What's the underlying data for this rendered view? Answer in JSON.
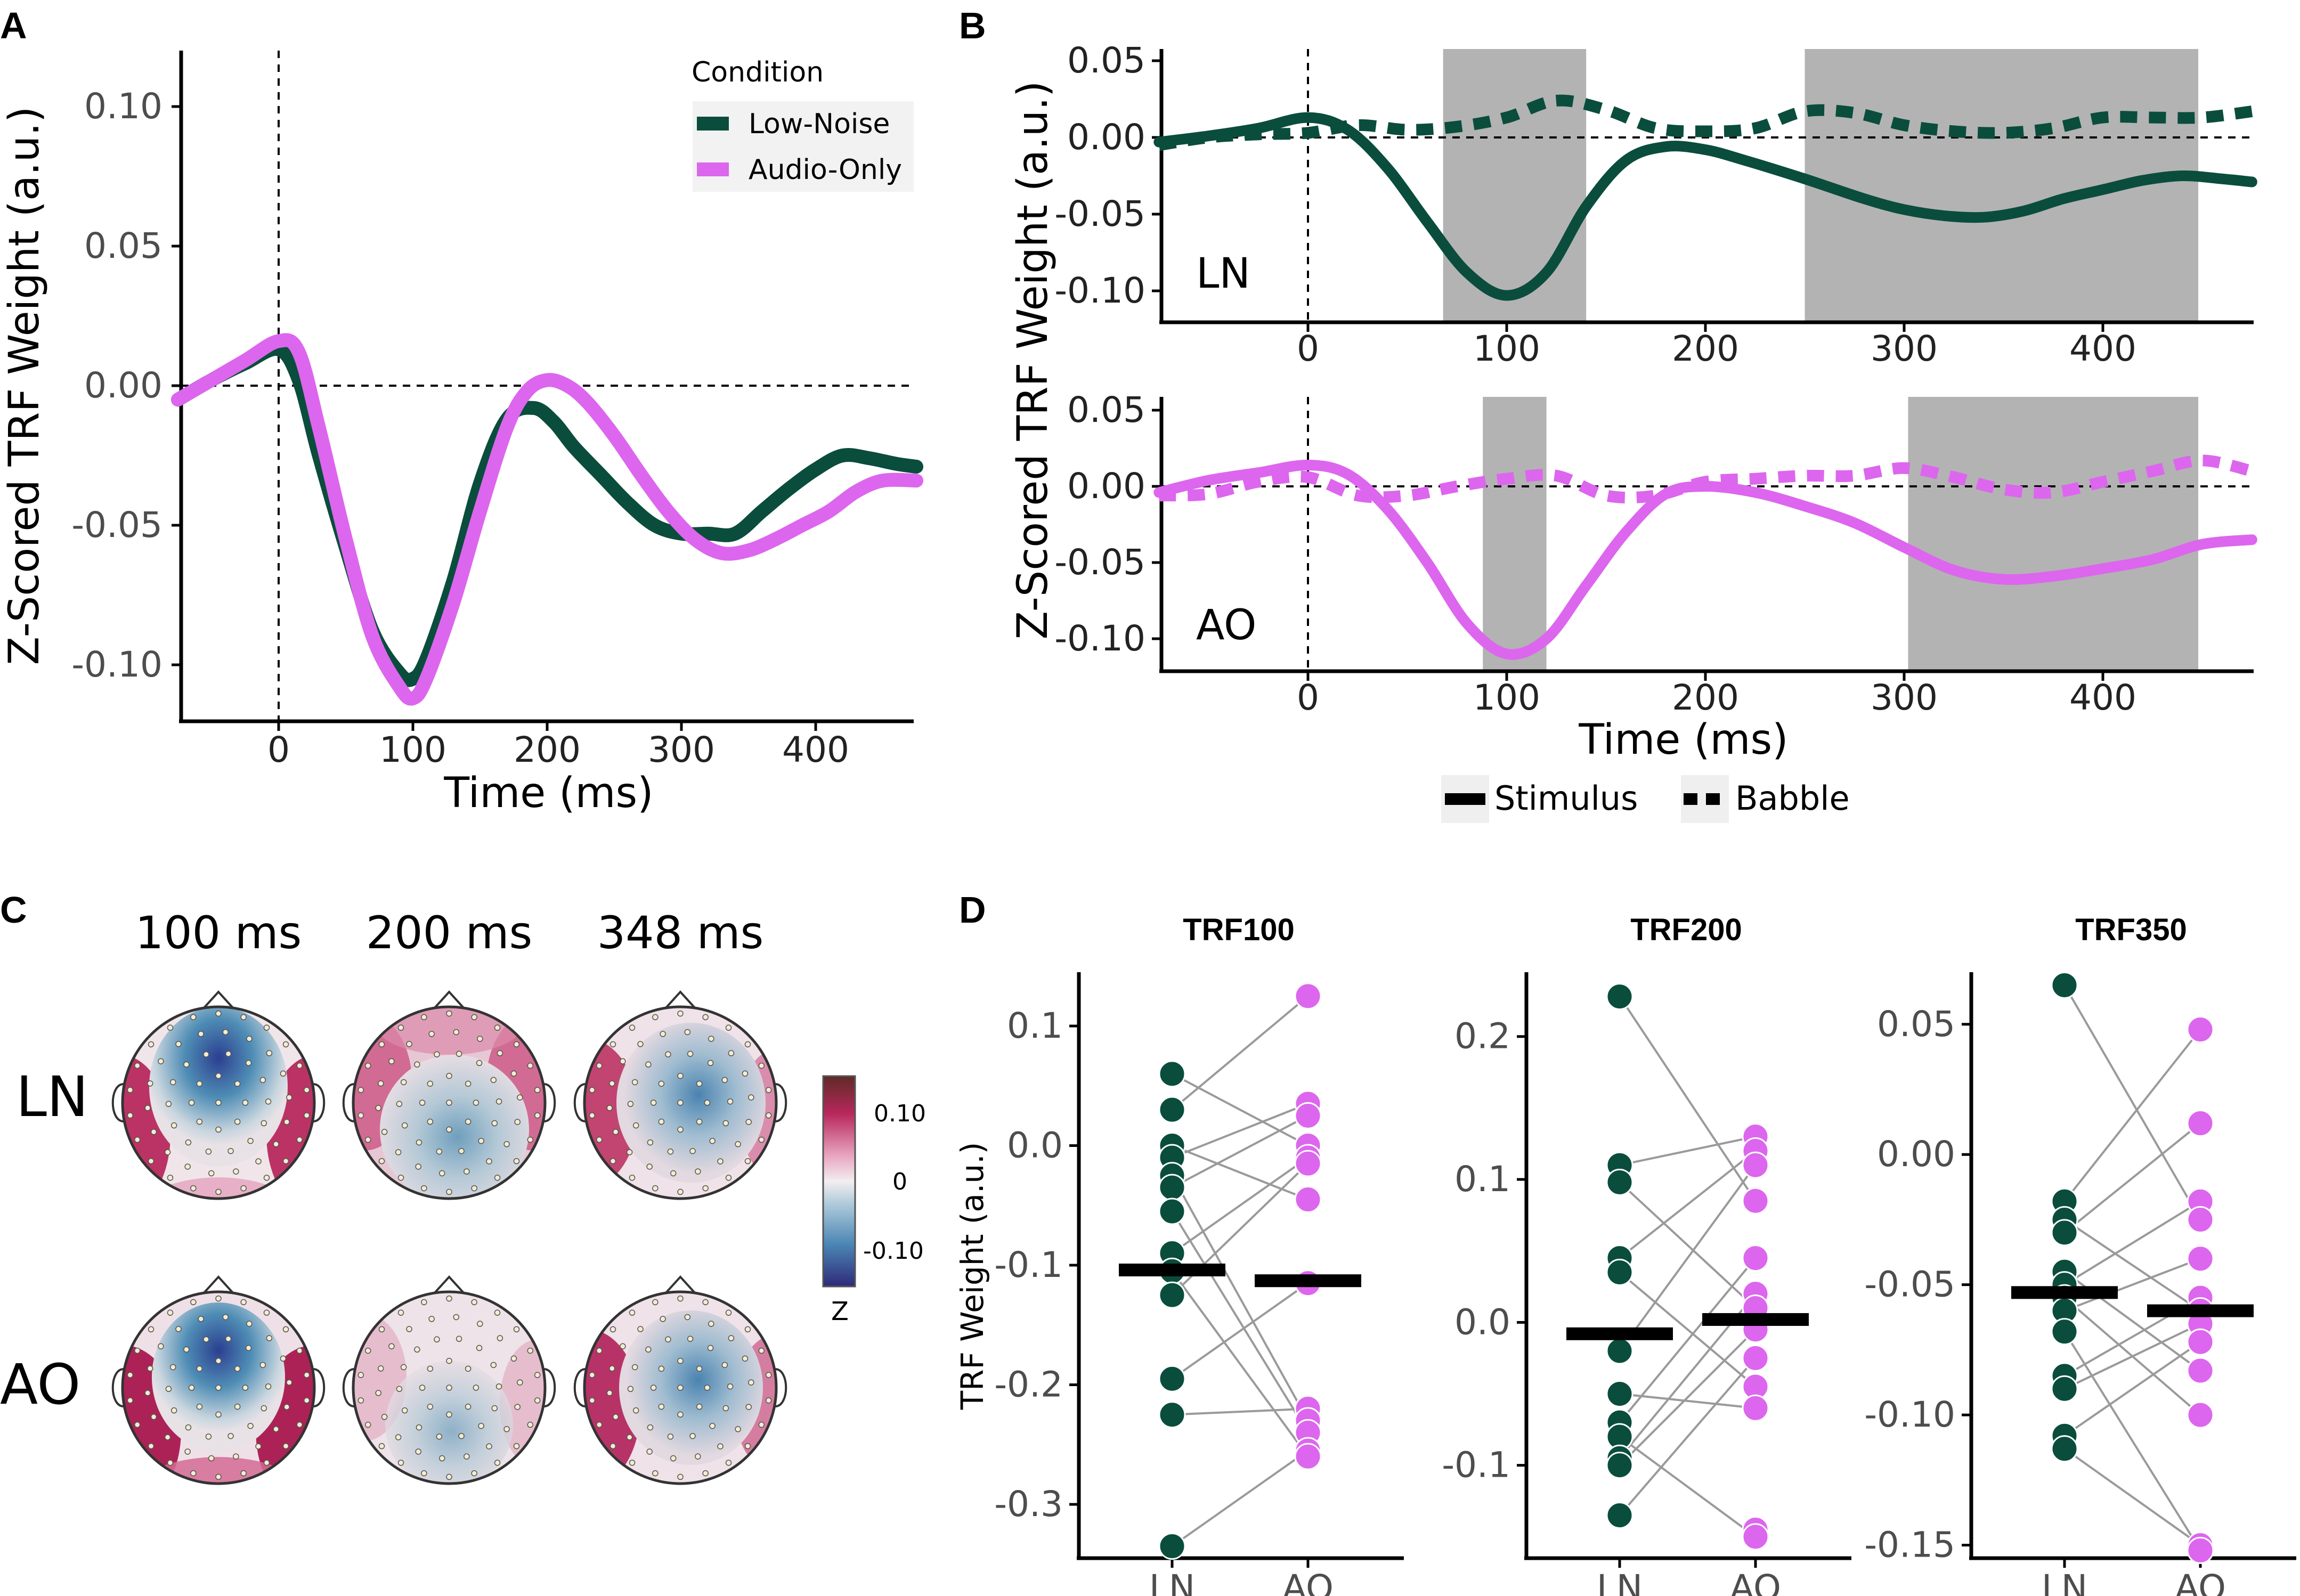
{
  "colors": {
    "low_noise": "#0a4d3c",
    "audio_only": "#dd66ee",
    "shade": "#b3b3b3"
  },
  "panel_labels": {
    "a": "A",
    "b": "B",
    "c": "C",
    "d": "D"
  },
  "chart_data": [
    {
      "id": "A",
      "type": "line",
      "xlabel": "Time (ms)",
      "ylabel": "Z-Scored TRF Weight (a.u.)",
      "xlim": [
        -75,
        475
      ],
      "ylim": [
        -0.12,
        0.12
      ],
      "xticks": [
        "0",
        "100",
        "200",
        "300",
        "400"
      ],
      "yticks": [
        "0.10",
        "0.05",
        "0.00",
        "-0.05",
        "-0.10"
      ],
      "legend_title": "Condition",
      "legend": [
        "Low-Noise",
        "Audio-Only"
      ],
      "legend_position": "top-right",
      "series": [
        {
          "name": "Low-Noise",
          "x": [
            -75,
            -50,
            -25,
            0,
            15,
            30,
            50,
            70,
            90,
            100,
            110,
            130,
            150,
            170,
            190,
            205,
            220,
            240,
            260,
            280,
            300,
            320,
            340,
            360,
            380,
            400,
            420,
            440,
            460,
            475
          ],
          "y": [
            -0.005,
            0.002,
            0.008,
            0.013,
            0.002,
            -0.025,
            -0.058,
            -0.088,
            -0.103,
            -0.105,
            -0.098,
            -0.07,
            -0.035,
            -0.012,
            -0.008,
            -0.013,
            -0.022,
            -0.032,
            -0.042,
            -0.05,
            -0.053,
            -0.053,
            -0.053,
            -0.045,
            -0.037,
            -0.03,
            -0.025,
            -0.026,
            -0.028,
            -0.029
          ]
        },
        {
          "name": "Audio-Only",
          "x": [
            -75,
            -50,
            -25,
            0,
            15,
            30,
            50,
            70,
            90,
            100,
            110,
            130,
            150,
            170,
            185,
            200,
            215,
            230,
            250,
            270,
            290,
            310,
            330,
            350,
            370,
            390,
            410,
            430,
            450,
            475
          ],
          "y": [
            -0.005,
            0.002,
            0.009,
            0.016,
            0.012,
            -0.015,
            -0.055,
            -0.09,
            -0.108,
            -0.112,
            -0.105,
            -0.078,
            -0.045,
            -0.015,
            -0.002,
            0.002,
            0.0,
            -0.006,
            -0.018,
            -0.032,
            -0.045,
            -0.055,
            -0.06,
            -0.059,
            -0.055,
            -0.05,
            -0.045,
            -0.038,
            -0.034,
            -0.034
          ]
        }
      ]
    },
    {
      "id": "B",
      "type": "line",
      "xlabel": "Time (ms)",
      "ylabel": "Z-Scored TRF Weight (a.u.)",
      "xlim": [
        -75,
        475
      ],
      "ylim": [
        -0.11,
        0.055
      ],
      "xticks": [
        "0",
        "100",
        "200",
        "300",
        "400"
      ],
      "yticks": [
        "0.05",
        "0.00",
        "-0.05",
        "-0.10"
      ],
      "legend": [
        "Stimulus",
        "Babble"
      ],
      "legend_position": "bottom",
      "subplots": [
        {
          "label": "LN",
          "shaded_windows": [
            [
              68,
              140
            ],
            [
              250,
              448
            ]
          ],
          "series": [
            {
              "name": "Stimulus",
              "x": [
                -75,
                -50,
                -25,
                0,
                20,
                40,
                60,
                80,
                100,
                120,
                140,
                160,
                180,
                200,
                220,
                250,
                280,
                300,
                320,
                340,
                360,
                380,
                400,
                420,
                440,
                460,
                475
              ],
              "y": [
                -0.003,
                0.001,
                0.006,
                0.013,
                0.005,
                -0.02,
                -0.055,
                -0.088,
                -0.103,
                -0.088,
                -0.045,
                -0.015,
                -0.006,
                -0.008,
                -0.015,
                -0.027,
                -0.04,
                -0.047,
                -0.051,
                -0.052,
                -0.048,
                -0.04,
                -0.034,
                -0.028,
                -0.025,
                -0.027,
                -0.029
              ]
            },
            {
              "name": "Babble",
              "x": [
                -75,
                -50,
                -25,
                0,
                25,
                50,
                75,
                100,
                125,
                150,
                175,
                200,
                225,
                250,
                275,
                300,
                325,
                350,
                375,
                400,
                425,
                450,
                475
              ],
              "y": [
                -0.005,
                0.0,
                0.002,
                0.003,
                0.008,
                0.005,
                0.007,
                0.013,
                0.024,
                0.018,
                0.006,
                0.004,
                0.006,
                0.017,
                0.016,
                0.008,
                0.004,
                0.003,
                0.006,
                0.013,
                0.013,
                0.013,
                0.017
              ]
            }
          ]
        },
        {
          "label": "AO",
          "shaded_windows": [
            [
              88,
              120
            ],
            [
              302,
              448
            ]
          ],
          "series": [
            {
              "name": "Stimulus",
              "x": [
                -75,
                -50,
                -25,
                0,
                20,
                40,
                60,
                80,
                100,
                120,
                140,
                160,
                180,
                200,
                225,
                250,
                275,
                300,
                325,
                350,
                375,
                400,
                425,
                450,
                475
              ],
              "y": [
                -0.004,
                0.004,
                0.009,
                0.014,
                0.008,
                -0.015,
                -0.05,
                -0.09,
                -0.11,
                -0.1,
                -0.065,
                -0.03,
                -0.005,
                0.0,
                -0.004,
                -0.013,
                -0.024,
                -0.04,
                -0.055,
                -0.061,
                -0.059,
                -0.054,
                -0.048,
                -0.038,
                -0.035
              ]
            },
            {
              "name": "Babble",
              "x": [
                -75,
                -50,
                -25,
                0,
                25,
                50,
                75,
                100,
                125,
                150,
                175,
                200,
                225,
                250,
                275,
                300,
                325,
                350,
                375,
                400,
                425,
                450,
                475
              ],
              "y": [
                -0.006,
                -0.005,
                0.003,
                0.006,
                -0.006,
                -0.006,
                0.0,
                0.005,
                0.007,
                -0.006,
                -0.006,
                0.003,
                0.005,
                0.007,
                0.007,
                0.012,
                0.006,
                -0.002,
                -0.004,
                0.003,
                0.01,
                0.017,
                0.01
              ]
            }
          ]
        }
      ]
    },
    {
      "id": "C",
      "type": "heatmap",
      "column_labels": [
        "100 ms",
        "200 ms",
        "348 ms"
      ],
      "row_labels": [
        "LN",
        "AO"
      ],
      "colorbar": {
        "ticks": [
          "0.10",
          "0",
          "-0.10"
        ],
        "title": "Z"
      }
    },
    {
      "id": "D",
      "type": "scatter",
      "ylabel": "TRF Weight (a.u.)",
      "categories": [
        "LN",
        "AO"
      ],
      "subplots": [
        {
          "title": "TRF100",
          "ylim": [
            -0.345,
            0.145
          ],
          "yticks": [
            "0.1",
            "0.0",
            "-0.1",
            "-0.2",
            "-0.3"
          ],
          "LN": [
            0.06,
            0.03,
            0.0,
            -0.01,
            -0.025,
            -0.035,
            -0.055,
            -0.09,
            -0.105,
            -0.125,
            -0.195,
            -0.225,
            -0.335
          ],
          "AO": [
            0.125,
            0.035,
            0.025,
            0.0,
            -0.01,
            -0.015,
            -0.045,
            -0.115,
            -0.22,
            -0.23,
            -0.24,
            -0.255,
            -0.26
          ],
          "mean": {
            "LN": -0.104,
            "AO": -0.113
          }
        },
        {
          "title": "TRF200",
          "ylim": [
            -0.165,
            0.245
          ],
          "yticks": [
            "0.2",
            "0.1",
            "0.0",
            "-0.1"
          ],
          "LN": [
            0.228,
            0.11,
            0.098,
            0.045,
            0.035,
            -0.02,
            -0.05,
            -0.07,
            -0.08,
            -0.095,
            -0.1,
            -0.135
          ],
          "AO": [
            0.13,
            0.12,
            0.11,
            0.085,
            0.045,
            0.02,
            0.01,
            -0.005,
            -0.025,
            -0.045,
            -0.06,
            -0.145,
            -0.15
          ],
          "mean": {
            "LN": -0.008,
            "AO": 0.002
          }
        },
        {
          "title": "TRF350",
          "ylim": [
            -0.155,
            0.07
          ],
          "yticks": [
            "0.05",
            "0.00",
            "-0.05",
            "-0.10",
            "-0.15"
          ],
          "LN": [
            0.065,
            -0.018,
            -0.025,
            -0.03,
            -0.045,
            -0.05,
            -0.055,
            -0.06,
            -0.068,
            -0.085,
            -0.09,
            -0.108,
            -0.113
          ],
          "AO": [
            0.048,
            0.012,
            -0.018,
            -0.025,
            -0.04,
            -0.055,
            -0.06,
            -0.065,
            -0.072,
            -0.083,
            -0.1,
            -0.15,
            -0.152
          ],
          "mean": {
            "LN": -0.053,
            "AO": -0.06
          }
        }
      ]
    }
  ]
}
